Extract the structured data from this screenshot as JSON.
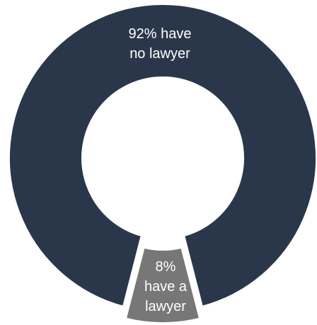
{
  "chart_data": {
    "type": "pie",
    "variant": "donut",
    "categories": [
      "have no lawyer",
      "have a lawyer"
    ],
    "values": [
      92,
      8
    ],
    "unit": "%",
    "colors": [
      "#2a374b",
      "#777777"
    ],
    "labels": [
      [
        "92% have",
        "no lawyer"
      ],
      [
        "8%",
        "have a",
        "lawyer"
      ]
    ],
    "title": "",
    "legend": "none"
  }
}
